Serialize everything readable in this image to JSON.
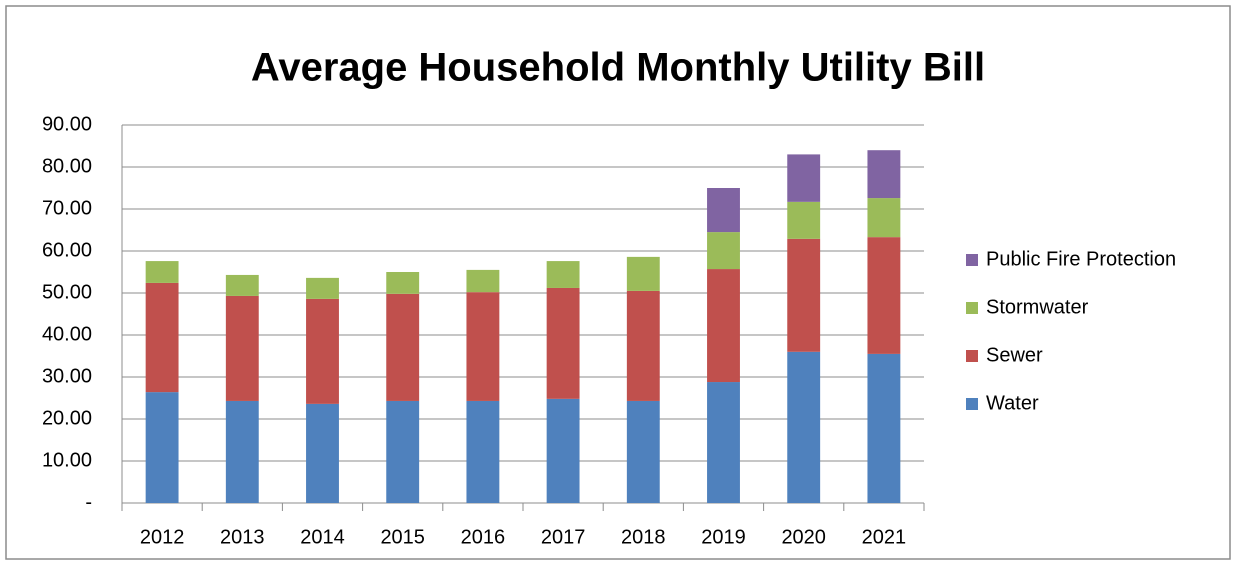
{
  "chart_data": {
    "type": "stacked_bar",
    "title": "Average Household Monthly Utility Bill",
    "categories": [
      "2012",
      "2013",
      "2014",
      "2015",
      "2016",
      "2017",
      "2018",
      "2019",
      "2020",
      "2021"
    ],
    "series": [
      {
        "name": "Water",
        "color": "#4f81bd",
        "values": [
          26.4,
          24.3,
          23.6,
          24.3,
          24.3,
          24.8,
          24.3,
          28.8,
          36.0,
          35.5
        ]
      },
      {
        "name": "Sewer",
        "color": "#c0504d",
        "values": [
          26.0,
          25.0,
          25.0,
          25.5,
          25.9,
          26.4,
          26.2,
          26.9,
          26.9,
          27.8
        ]
      },
      {
        "name": "Stormwater",
        "color": "#9bbb59",
        "values": [
          5.2,
          5.0,
          5.0,
          5.2,
          5.3,
          6.4,
          8.1,
          8.8,
          8.8,
          9.3
        ]
      },
      {
        "name": "Public Fire Protection",
        "color": "#8064a2",
        "values": [
          null,
          null,
          null,
          null,
          null,
          null,
          null,
          10.5,
          11.3,
          11.4
        ]
      }
    ],
    "ylim": [
      0,
      90
    ],
    "yticks": [
      {
        "value": 0,
        "label": "-"
      },
      {
        "value": 10,
        "label": "10.00"
      },
      {
        "value": 20,
        "label": "20.00"
      },
      {
        "value": 30,
        "label": "30.00"
      },
      {
        "value": 40,
        "label": "40.00"
      },
      {
        "value": 50,
        "label": "50.00"
      },
      {
        "value": 60,
        "label": "60.00"
      },
      {
        "value": 70,
        "label": "70.00"
      },
      {
        "value": 80,
        "label": "80.00"
      },
      {
        "value": 90,
        "label": "90.00"
      }
    ],
    "grid": true,
    "legend": "right"
  }
}
